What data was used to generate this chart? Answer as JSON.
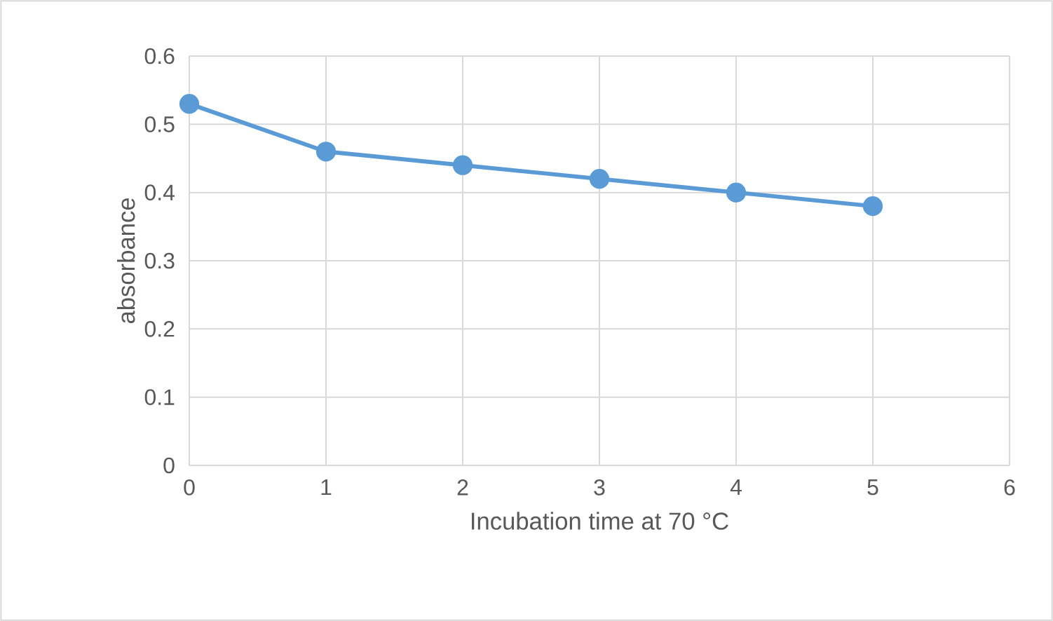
{
  "chart_data": {
    "type": "line",
    "xlabel": "Incubation time at 70 °C",
    "ylabel": "absorbance",
    "x": [
      0,
      1,
      2,
      3,
      4,
      5
    ],
    "series": [
      {
        "color": "#5b9bd5",
        "values": [
          0.53,
          0.46,
          0.44,
          0.42,
          0.4,
          0.38
        ]
      }
    ],
    "xlim": [
      0,
      6
    ],
    "xticks": [
      0,
      1,
      2,
      3,
      4,
      5,
      6
    ],
    "ylim": [
      0,
      0.6
    ],
    "yticks": [
      0,
      0.1,
      0.2,
      0.3,
      0.4,
      0.5,
      0.6
    ],
    "grid": true,
    "marker": "circle",
    "line_style": "solid"
  }
}
